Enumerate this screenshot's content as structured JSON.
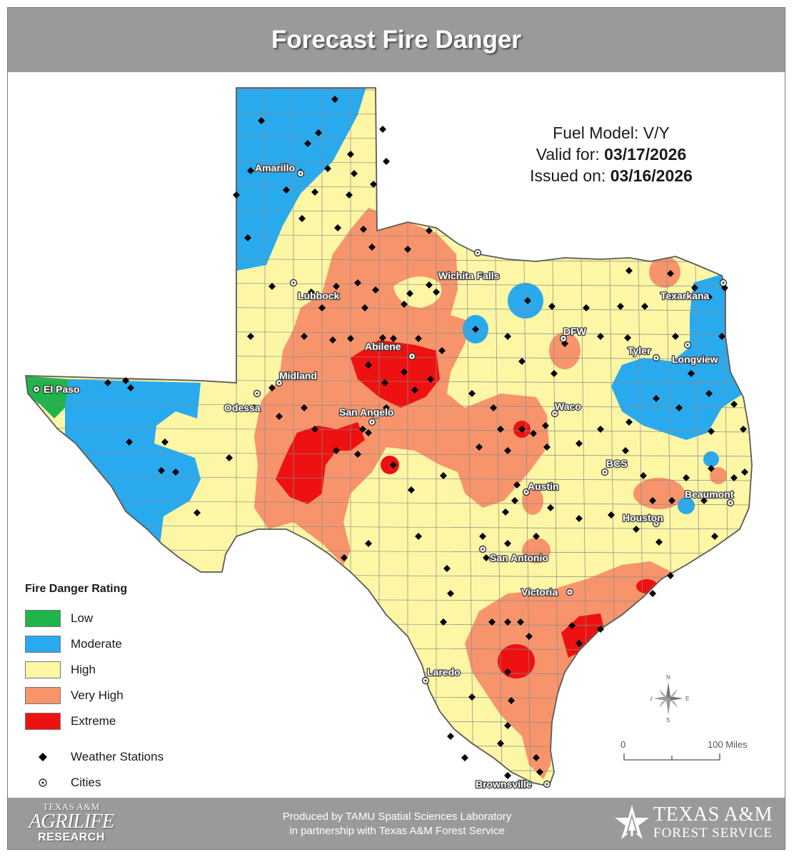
{
  "header": {
    "title": "Forecast Fire Danger"
  },
  "info": {
    "fuel_model_label": "Fuel Model: ",
    "fuel_model_value": "V/Y",
    "valid_label": "Valid for: ",
    "valid_date": "03/17/2026",
    "issued_label": "Issued on: ",
    "issued_date": "03/16/2026"
  },
  "legend": {
    "title": "Fire Danger Rating",
    "items": [
      {
        "label": "Low",
        "color": "#1fb54a"
      },
      {
        "label": "Moderate",
        "color": "#29aaee"
      },
      {
        "label": "High",
        "color": "#fdf6a5"
      },
      {
        "label": "Very High",
        "color": "#f7946b"
      },
      {
        "label": "Extreme",
        "color": "#ee1111"
      }
    ],
    "stations_label": "Weather Stations",
    "cities_label": "Cities"
  },
  "cities": [
    "Amarillo",
    "Lubbock",
    "Wichita Falls",
    "Texarkana",
    "DFW",
    "Abilene",
    "Tyler",
    "Longview",
    "Midland",
    "El Paso",
    "Odessa",
    "San Angelo",
    "Waco",
    "BCS",
    "Austin",
    "Beaumont",
    "Houston",
    "San Antonio",
    "Victoria",
    "Laredo",
    "Brownsville"
  ],
  "compass": {
    "n": "N",
    "s": "S",
    "e": "E",
    "w": "W"
  },
  "scale": {
    "start": "0",
    "end": "100 Miles"
  },
  "footer": {
    "produced_line1": "Produced by TAMU Spatial Sciences Laboratory",
    "produced_line2": "in partnership with Texas A&M Forest Service",
    "agrilife_line1": "TEXAS A&M",
    "agrilife_line2": "AGRILIFE",
    "agrilife_line3": "RESEARCH",
    "tfs_line1": "TEXAS A&M",
    "tfs_line2": "FOREST SERVICE"
  },
  "colors": {
    "header_bg": "#9a9a9a",
    "border": "#5a5a5a"
  }
}
